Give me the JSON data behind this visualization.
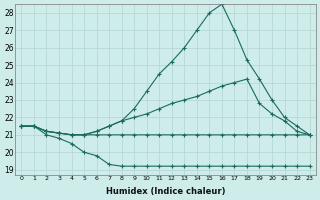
{
  "xlabel": "Humidex (Indice chaleur)",
  "bg_color": "#cdecea",
  "grid_color": "#b8d8d5",
  "line_color": "#1a6b5e",
  "xlim": [
    -0.5,
    23.5
  ],
  "ylim": [
    18.7,
    28.5
  ],
  "xticks": [
    0,
    1,
    2,
    3,
    4,
    5,
    6,
    7,
    8,
    9,
    10,
    11,
    12,
    13,
    14,
    15,
    16,
    17,
    18,
    19,
    20,
    21,
    22,
    23
  ],
  "yticks": [
    19,
    20,
    21,
    22,
    23,
    24,
    25,
    26,
    27,
    28
  ],
  "series": [
    [
      21.5,
      21.5,
      21.0,
      20.8,
      20.5,
      20.0,
      19.8,
      19.3,
      19.2,
      19.2,
      19.2,
      19.2,
      19.2,
      19.2,
      19.2,
      19.2,
      19.2,
      19.2,
      19.2,
      19.2,
      19.2,
      19.2,
      19.2,
      19.2
    ],
    [
      21.5,
      21.5,
      21.2,
      21.1,
      21.0,
      21.0,
      21.0,
      21.0,
      21.0,
      21.0,
      21.0,
      21.0,
      21.0,
      21.0,
      21.0,
      21.0,
      21.0,
      21.0,
      21.0,
      21.0,
      21.0,
      21.0,
      21.0,
      21.0
    ],
    [
      21.5,
      21.5,
      21.2,
      21.1,
      21.0,
      21.0,
      21.2,
      21.5,
      21.8,
      22.0,
      22.2,
      22.5,
      22.8,
      23.0,
      23.2,
      23.5,
      23.8,
      24.0,
      24.2,
      22.8,
      22.2,
      21.8,
      21.2,
      21.0
    ],
    [
      21.5,
      21.5,
      21.2,
      21.1,
      21.0,
      21.0,
      21.2,
      21.5,
      21.8,
      22.5,
      23.5,
      24.5,
      25.2,
      26.0,
      27.0,
      28.0,
      28.5,
      27.0,
      25.3,
      24.2,
      23.0,
      22.0,
      21.5,
      21.0
    ]
  ]
}
